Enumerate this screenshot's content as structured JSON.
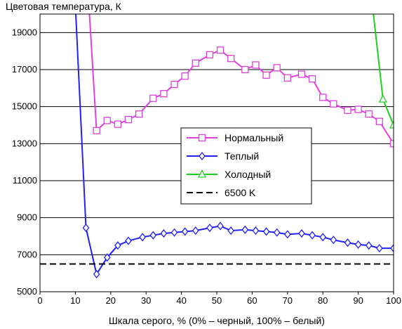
{
  "chart_data": {
    "type": "line",
    "title": "",
    "ylabel": "Цветовая температура, К",
    "xlabel": "Шкала серого, % (0% – черный, 100% – белый)",
    "xlim": [
      0,
      100
    ],
    "ylim": [
      5000,
      20000
    ],
    "xticks": [
      "0",
      "10",
      "20",
      "30",
      "40",
      "50",
      "60",
      "70",
      "80",
      "90",
      "100"
    ],
    "yticks": [
      "5000",
      "7000",
      "9000",
      "11000",
      "13000",
      "15000",
      "17000",
      "19000"
    ],
    "grid": "horizontal",
    "legend_position": "center-right",
    "series": [
      {
        "name": "Нормальный",
        "color": "#e040e0",
        "marker": "square",
        "x": [
          13.5,
          16,
          19,
          22,
          25,
          28,
          32,
          35,
          38,
          41,
          44,
          48,
          51,
          54,
          58,
          61,
          64,
          67,
          70,
          74,
          77,
          80,
          83,
          87,
          90,
          93,
          96,
          100
        ],
        "y": [
          21500,
          13700,
          14250,
          14050,
          14300,
          14600,
          15450,
          15700,
          16200,
          16650,
          17350,
          17800,
          18050,
          17600,
          17000,
          17250,
          16700,
          17100,
          16550,
          16750,
          16500,
          15500,
          15150,
          14800,
          14850,
          14600,
          14200,
          13000
        ]
      },
      {
        "name": "Теплый",
        "color": "#2020ff",
        "marker": "diamond",
        "x": [
          10,
          13,
          16,
          19,
          22,
          25,
          29,
          32,
          35,
          38,
          41,
          44,
          48,
          51,
          54,
          58,
          61,
          64,
          67,
          70,
          74,
          77,
          80,
          83,
          87,
          90,
          93,
          96,
          100
        ],
        "y": [
          20500,
          8450,
          5950,
          6850,
          7500,
          7750,
          7950,
          8050,
          8150,
          8200,
          8250,
          8300,
          8450,
          8550,
          8300,
          8350,
          8300,
          8250,
          8200,
          8100,
          8150,
          8050,
          7950,
          7800,
          7650,
          7550,
          7500,
          7350,
          7350
        ]
      },
      {
        "name": "Холодный",
        "color": "#20d020",
        "marker": "triangle",
        "x": [
          94,
          97,
          100
        ],
        "y": [
          20500,
          15400,
          14000
        ]
      },
      {
        "name": "6500 K",
        "color": "#000000",
        "marker": "none",
        "dashed": true,
        "x": [
          0,
          100
        ],
        "y": [
          6500,
          6500
        ]
      }
    ]
  }
}
